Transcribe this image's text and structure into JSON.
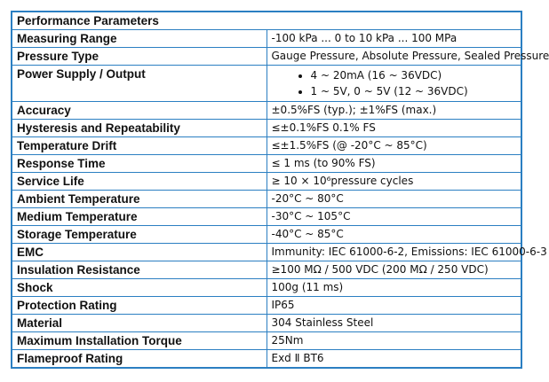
{
  "table": {
    "title": "Performance Parameters",
    "rows": [
      {
        "label": "Measuring Range",
        "value": "-100 kPa ... 0 to 10 kPa ... 100 MPa"
      },
      {
        "label": "Pressure Type",
        "value": "Gauge Pressure, Absolute Pressure, Sealed Pressure"
      },
      {
        "label": "Power Supply / Output",
        "items": [
          "4 ~ 20mA (16 ~ 36VDC)",
          "1 ~ 5V, 0 ~ 5V (12 ~ 36VDC)"
        ]
      },
      {
        "label": "Accuracy",
        "value": "±0.5%FS (typ.); ±1%FS (max.)"
      },
      {
        "label": "Hysteresis and Repeatability",
        "value": "≤±0.1%FS 0.1% FS"
      },
      {
        "label": "Temperature Drift",
        "value": "≤±1.5%FS (@ -20°C ~ 85°C)"
      },
      {
        "label": "Response Time",
        "value": "≤ 1 ms (to 90% FS)"
      },
      {
        "label": "Service Life",
        "value": "≥ 10 × 10⁶pressure cycles"
      },
      {
        "label": "Ambient Temperature",
        "value": "-20°C ~ 80°C"
      },
      {
        "label": "Medium Temperature",
        "value": "-30°C ~ 105°C"
      },
      {
        "label": "Storage Temperature",
        "value": "-40°C ~ 85°C"
      },
      {
        "label": "EMC",
        "value": "Immunity: IEC 61000-6-2, Emissions: IEC 61000-6-3"
      },
      {
        "label": "Insulation Resistance",
        "value": "≥100 MΩ / 500 VDC (200 MΩ / 250 VDC)"
      },
      {
        "label": "Shock",
        "value": "100g (11 ms)"
      },
      {
        "label": "Protection Rating",
        "value": "IP65"
      },
      {
        "label": "Material",
        "value": "304 Stainless Steel"
      },
      {
        "label": "Maximum Installation Torque",
        "value": "25Nm"
      },
      {
        "label": "Flameproof Rating",
        "value": "Exd Ⅱ BT6"
      }
    ]
  }
}
